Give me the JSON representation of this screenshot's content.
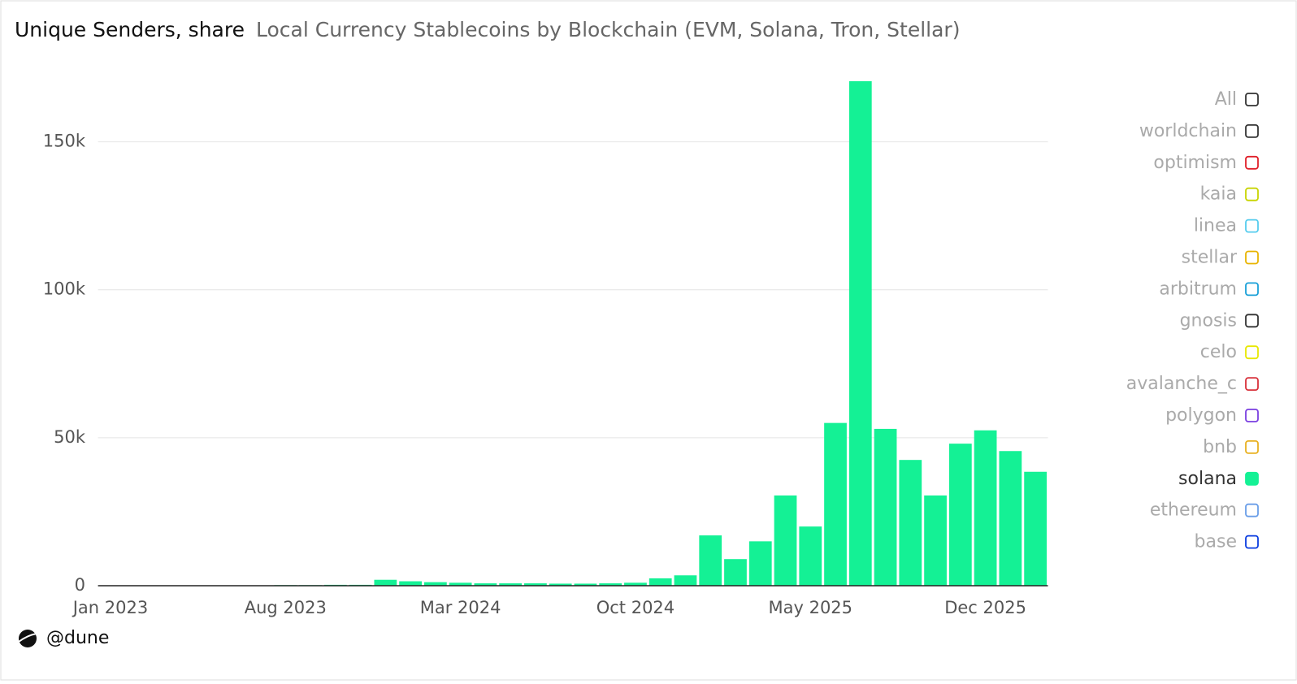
{
  "chart_data": {
    "type": "bar",
    "title": "Unique Senders, share",
    "subtitle": "Local Currency Stablecoins by Blockchain (EVM, Solana, Tron, Stellar)",
    "categories": [
      "Jan 2023",
      null,
      null,
      null,
      null,
      null,
      null,
      "Aug 2023",
      null,
      null,
      null,
      null,
      null,
      null,
      "Mar 2024",
      null,
      null,
      null,
      null,
      null,
      null,
      "Oct 2024",
      null,
      null,
      null,
      null,
      null,
      null,
      "May 2025",
      null,
      null,
      null,
      null,
      null,
      null,
      "Dec 2025",
      null,
      null
    ],
    "series": [
      {
        "name": "worldchain",
        "color": "#333333"
      },
      {
        "name": "optimism",
        "color": "#e0202a"
      },
      {
        "name": "kaia",
        "color": "#c8d400"
      },
      {
        "name": "linea",
        "color": "#55ccee"
      },
      {
        "name": "stellar",
        "color": "#e8b400"
      },
      {
        "name": "arbitrum",
        "color": "#1aa0d8"
      },
      {
        "name": "gnosis",
        "color": "#333333"
      },
      {
        "name": "celo",
        "color": "#e8e800"
      },
      {
        "name": "avalanche_c",
        "color": "#d8303a"
      },
      {
        "name": "polygon",
        "color": "#7a3fe0"
      },
      {
        "name": "bnb",
        "color": "#e8b020"
      },
      {
        "name": "solana",
        "color": "#14f195",
        "values": [
          100,
          100,
          100,
          100,
          100,
          100,
          100,
          200,
          200,
          300,
          300,
          2000,
          1500,
          1200,
          1000,
          800,
          800,
          800,
          700,
          700,
          800,
          1000,
          2500,
          3500,
          17000,
          9000,
          15000,
          30500,
          20000,
          55000,
          170500,
          53000,
          42500,
          30500,
          48000,
          52500,
          45500,
          38500
        ]
      },
      {
        "name": "ethereum",
        "color": "#6a9ee8"
      },
      {
        "name": "base",
        "color": "#0a3ce0"
      }
    ],
    "legend_all": {
      "name": "All",
      "color": "#333333"
    },
    "ylim": [
      0,
      175000
    ],
    "yticks": [
      {
        "value": 0,
        "label": "0"
      },
      {
        "value": 50000,
        "label": "50k"
      },
      {
        "value": 100000,
        "label": "100k"
      },
      {
        "value": 150000,
        "label": "150k"
      }
    ],
    "grid": true,
    "legend": "right",
    "footer": "@dune"
  }
}
